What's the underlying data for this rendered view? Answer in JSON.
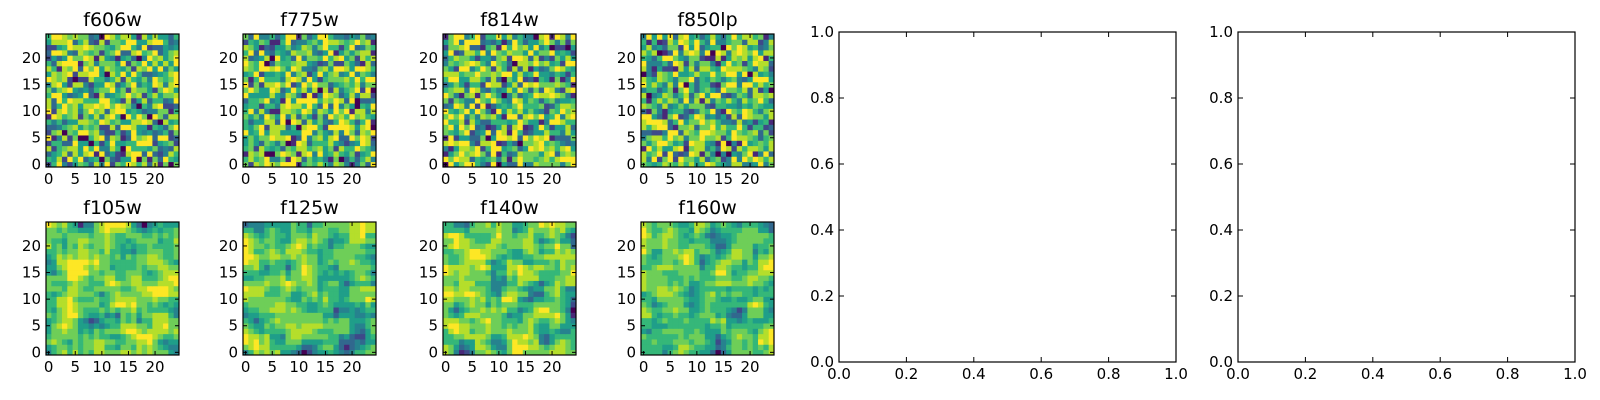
{
  "chart_data": [
    {
      "type": "heatmap",
      "title": "f606w",
      "x_ticks": [
        "0",
        "5",
        "10",
        "15",
        "20"
      ],
      "y_ticks": [
        "0",
        "5",
        "10",
        "15",
        "20"
      ],
      "xlim": [
        -0.5,
        24.5
      ],
      "ylim": [
        -0.5,
        24.5
      ],
      "grid_size": 25,
      "colormap": "viridis"
    },
    {
      "type": "heatmap",
      "title": "f775w",
      "x_ticks": [
        "0",
        "5",
        "10",
        "15",
        "20"
      ],
      "y_ticks": [
        "0",
        "5",
        "10",
        "15",
        "20"
      ],
      "xlim": [
        -0.5,
        24.5
      ],
      "ylim": [
        -0.5,
        24.5
      ],
      "grid_size": 25,
      "colormap": "viridis"
    },
    {
      "type": "heatmap",
      "title": "f814w",
      "x_ticks": [
        "0",
        "5",
        "10",
        "15",
        "20"
      ],
      "y_ticks": [
        "0",
        "5",
        "10",
        "15",
        "20"
      ],
      "xlim": [
        -0.5,
        24.5
      ],
      "ylim": [
        -0.5,
        24.5
      ],
      "grid_size": 25,
      "colormap": "viridis"
    },
    {
      "type": "heatmap",
      "title": "f850lp",
      "x_ticks": [
        "0",
        "5",
        "10",
        "15",
        "20"
      ],
      "y_ticks": [
        "0",
        "5",
        "10",
        "15",
        "20"
      ],
      "xlim": [
        -0.5,
        24.5
      ],
      "ylim": [
        -0.5,
        24.5
      ],
      "grid_size": 25,
      "colormap": "viridis"
    },
    {
      "type": "heatmap",
      "title": "f105w",
      "x_ticks": [
        "0",
        "5",
        "10",
        "15",
        "20"
      ],
      "y_ticks": [
        "0",
        "5",
        "10",
        "15",
        "20"
      ],
      "xlim": [
        -0.5,
        24.5
      ],
      "ylim": [
        -0.5,
        24.5
      ],
      "grid_size": 25,
      "colormap": "viridis"
    },
    {
      "type": "heatmap",
      "title": "f125w",
      "x_ticks": [
        "0",
        "5",
        "10",
        "15",
        "20"
      ],
      "y_ticks": [
        "0",
        "5",
        "10",
        "15",
        "20"
      ],
      "xlim": [
        -0.5,
        24.5
      ],
      "ylim": [
        -0.5,
        24.5
      ],
      "grid_size": 25,
      "colormap": "viridis"
    },
    {
      "type": "heatmap",
      "title": "f140w",
      "x_ticks": [
        "0",
        "5",
        "10",
        "15",
        "20"
      ],
      "y_ticks": [
        "0",
        "5",
        "10",
        "15",
        "20"
      ],
      "xlim": [
        -0.5,
        24.5
      ],
      "ylim": [
        -0.5,
        24.5
      ],
      "grid_size": 25,
      "colormap": "viridis"
    },
    {
      "type": "heatmap",
      "title": "f160w",
      "x_ticks": [
        "0",
        "5",
        "10",
        "15",
        "20"
      ],
      "y_ticks": [
        "0",
        "5",
        "10",
        "15",
        "20"
      ],
      "xlim": [
        -0.5,
        24.5
      ],
      "ylim": [
        -0.5,
        24.5
      ],
      "grid_size": 25,
      "colormap": "viridis"
    },
    {
      "type": "line",
      "title": "",
      "x_ticks": [
        "0.0",
        "0.2",
        "0.4",
        "0.6",
        "0.8",
        "1.0"
      ],
      "y_ticks": [
        "0.0",
        "0.2",
        "0.4",
        "0.6",
        "0.8",
        "1.0"
      ],
      "xlim": [
        0,
        1
      ],
      "ylim": [
        0,
        1
      ],
      "series": []
    },
    {
      "type": "line",
      "title": "",
      "x_ticks": [
        "0.0",
        "0.2",
        "0.4",
        "0.6",
        "0.8",
        "1.0"
      ],
      "y_ticks": [
        "0.0",
        "0.2",
        "0.4",
        "0.6",
        "0.8",
        "1.0"
      ],
      "xlim": [
        0,
        1
      ],
      "ylim": [
        0,
        1
      ],
      "series": []
    }
  ],
  "colors": {
    "viridis": [
      "#440154",
      "#482878",
      "#3e4989",
      "#31688e",
      "#26828e",
      "#1f9e89",
      "#35b779",
      "#6ece58",
      "#b5de2b",
      "#fde725"
    ],
    "axis": "#000000",
    "background": "#ffffff"
  }
}
